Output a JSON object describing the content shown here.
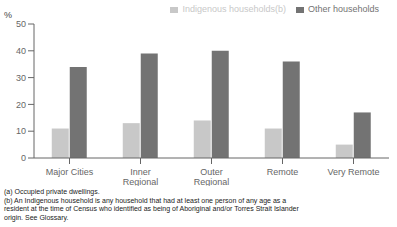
{
  "chart_data": {
    "type": "bar",
    "categories": [
      "Major Cities",
      "Inner\nRegional",
      "Outer\nRegional",
      "Remote",
      "Very Remote"
    ],
    "series": [
      {
        "name": "Indigenous households(b)",
        "color": "#c8c8c8",
        "values": [
          11,
          13,
          14,
          11,
          5
        ]
      },
      {
        "name": "Other households",
        "color": "#737373",
        "values": [
          34,
          39,
          40,
          36,
          17
        ]
      }
    ],
    "ylabel": "%",
    "ylim": [
      0,
      50
    ],
    "yticks": [
      0,
      10,
      20,
      30,
      40,
      50
    ],
    "grid": false,
    "legend": "upper right",
    "annotations": [
      "(a) Occupied private dwellings.",
      "(b) An Indigenous household is any household that had at least one person of any age as a",
      "resident at the time of Census who identified as being of Aboriginal and/or Torres Strait Islander",
      "origin. See Glossary."
    ]
  }
}
